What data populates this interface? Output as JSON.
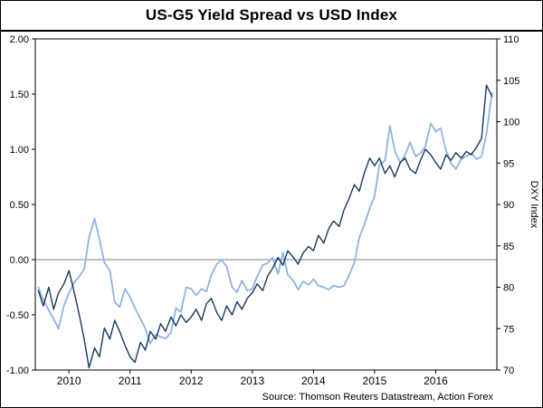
{
  "title": "US-G5 Yield Spread vs USD Index",
  "source": "Source: Thomson Reuters Datastream, Action Forex",
  "chart_data": {
    "type": "line",
    "title": "US-G5 Yield Spread vs USD Index",
    "x_range": [
      2009.45,
      2017.0
    ],
    "x_ticks": [
      2010,
      2011,
      2012,
      2013,
      2014,
      2015,
      2016
    ],
    "x_tick_labels": [
      "2010",
      "2011",
      "2012",
      "2013",
      "2014",
      "2015",
      "2016"
    ],
    "left_axis": {
      "label": "",
      "range": [
        -1.0,
        2.0
      ],
      "ticks": [
        2.0,
        1.5,
        1.0,
        0.5,
        0.0,
        -0.5,
        -1.0
      ],
      "tick_labels": [
        "2.00",
        "1.50",
        "1.00",
        "0.50",
        "0.00",
        "-0.50",
        "-1.00"
      ]
    },
    "right_axis": {
      "label": "DXY Index",
      "range": [
        70,
        110
      ],
      "ticks": [
        110,
        105,
        100,
        95,
        90,
        85,
        80,
        75,
        70
      ],
      "tick_labels": [
        "110",
        "105",
        "100",
        "95",
        "90",
        "85",
        "80",
        "75",
        "70"
      ]
    },
    "zero_line": true,
    "zero_line_color": "#7F7F7F",
    "frame_color": "#000000",
    "grid": false,
    "legend": "none",
    "x": [
      2009.5,
      2009.58,
      2009.67,
      2009.75,
      2009.83,
      2009.92,
      2010.0,
      2010.08,
      2010.17,
      2010.25,
      2010.33,
      2010.42,
      2010.5,
      2010.58,
      2010.67,
      2010.75,
      2010.83,
      2010.92,
      2011.0,
      2011.08,
      2011.17,
      2011.25,
      2011.33,
      2011.42,
      2011.5,
      2011.58,
      2011.67,
      2011.75,
      2011.83,
      2011.92,
      2012.0,
      2012.08,
      2012.17,
      2012.25,
      2012.33,
      2012.42,
      2012.5,
      2012.58,
      2012.67,
      2012.75,
      2012.83,
      2012.92,
      2013.0,
      2013.08,
      2013.17,
      2013.25,
      2013.33,
      2013.42,
      2013.5,
      2013.58,
      2013.67,
      2013.75,
      2013.83,
      2013.92,
      2014.0,
      2014.08,
      2014.17,
      2014.25,
      2014.33,
      2014.42,
      2014.5,
      2014.58,
      2014.67,
      2014.75,
      2014.83,
      2014.92,
      2015.0,
      2015.08,
      2015.17,
      2015.25,
      2015.33,
      2015.42,
      2015.5,
      2015.58,
      2015.67,
      2015.75,
      2015.83,
      2015.92,
      2016.0,
      2016.08,
      2016.17,
      2016.25,
      2016.33,
      2016.42,
      2016.5,
      2016.58,
      2016.67,
      2016.75,
      2016.83,
      2016.92
    ],
    "series": [
      {
        "name": "US-G5 Yield Spread",
        "key": "yield-spread",
        "axis": "left",
        "color": "#17375E",
        "width": 1.4,
        "values": [
          -0.28,
          -0.42,
          -0.25,
          -0.45,
          -0.3,
          -0.22,
          -0.1,
          -0.28,
          -0.5,
          -0.72,
          -0.98,
          -0.8,
          -0.88,
          -0.62,
          -0.72,
          -0.55,
          -0.65,
          -0.78,
          -0.88,
          -0.93,
          -0.75,
          -0.82,
          -0.65,
          -0.72,
          -0.58,
          -0.65,
          -0.52,
          -0.6,
          -0.5,
          -0.57,
          -0.52,
          -0.45,
          -0.55,
          -0.4,
          -0.35,
          -0.48,
          -0.55,
          -0.42,
          -0.5,
          -0.38,
          -0.45,
          -0.35,
          -0.3,
          -0.22,
          -0.28,
          -0.15,
          -0.08,
          0.02,
          -0.05,
          0.08,
          0.02,
          -0.04,
          0.06,
          0.12,
          0.08,
          0.22,
          0.15,
          0.28,
          0.35,
          0.3,
          0.45,
          0.55,
          0.68,
          0.62,
          0.78,
          0.92,
          0.85,
          0.92,
          0.78,
          0.85,
          0.75,
          0.88,
          0.92,
          0.82,
          0.78,
          0.9,
          1.0,
          0.95,
          0.88,
          0.82,
          0.95,
          0.9,
          0.97,
          0.92,
          0.98,
          0.95,
          1.02,
          1.1,
          1.58,
          1.48
        ]
      },
      {
        "name": "USD Index (DXY)",
        "key": "dxy-index",
        "axis": "right",
        "color": "#8DB4E2",
        "width": 1.8,
        "values": [
          80.0,
          78.5,
          77.2,
          76.2,
          75.0,
          77.8,
          79.3,
          80.5,
          81.3,
          82.2,
          86.0,
          88.3,
          85.8,
          83.0,
          82.0,
          78.2,
          77.6,
          79.8,
          78.8,
          77.5,
          76.2,
          75.0,
          73.2,
          74.3,
          74.0,
          73.8,
          74.5,
          77.5,
          77.0,
          80.0,
          79.8,
          79.0,
          79.8,
          79.5,
          81.5,
          82.8,
          83.3,
          82.5,
          80.0,
          79.4,
          80.8,
          79.6,
          79.8,
          81.3,
          82.7,
          82.9,
          83.6,
          81.6,
          84.2,
          81.5,
          80.8,
          79.7,
          80.7,
          80.3,
          81.0,
          80.2,
          80.0,
          79.7,
          80.2,
          80.0,
          80.2,
          81.4,
          83.0,
          86.0,
          87.5,
          89.5,
          91.0,
          94.8,
          95.3,
          99.5,
          96.5,
          95.0,
          96.0,
          97.5,
          95.8,
          96.2,
          97.0,
          99.8,
          98.8,
          99.2,
          96.5,
          95.0,
          94.3,
          95.5,
          95.8,
          96.2,
          95.5,
          95.8,
          98.5,
          103.5
        ]
      }
    ]
  }
}
